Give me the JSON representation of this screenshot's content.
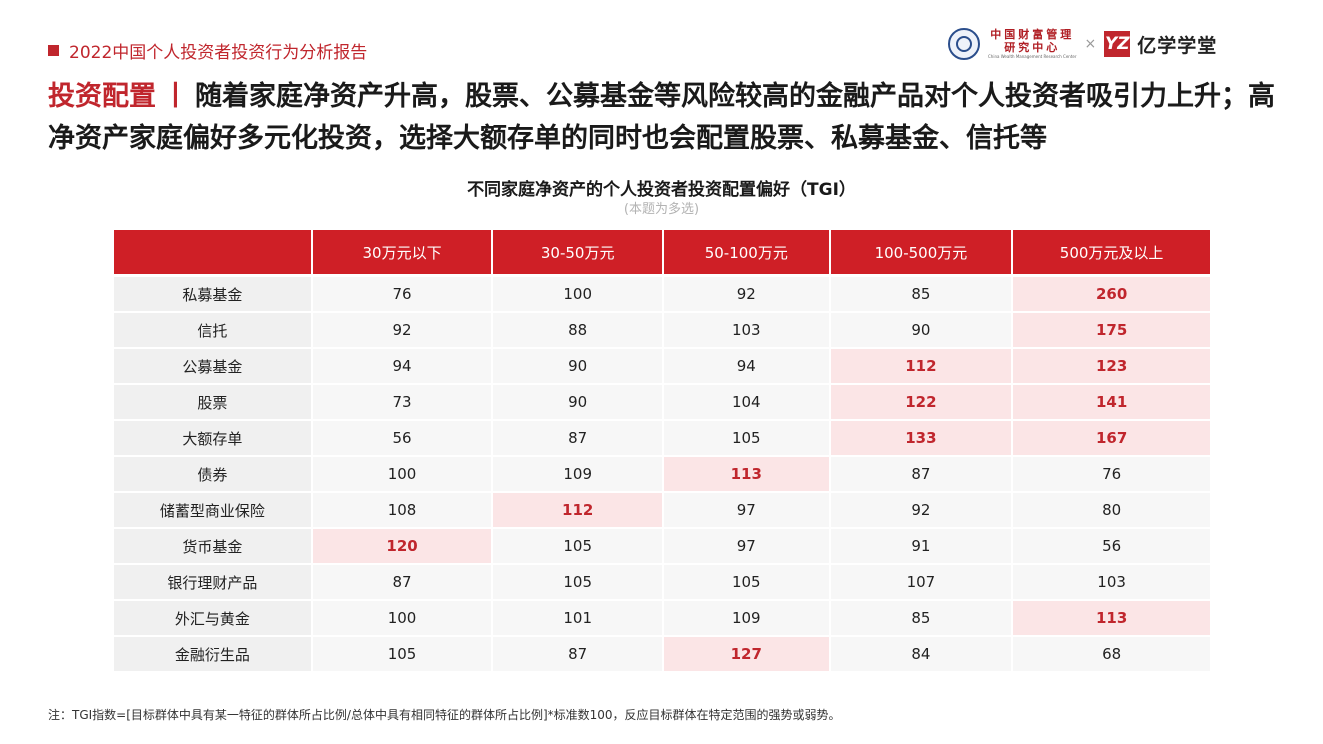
{
  "header": {
    "report_title": "2022中国个人投资者投资行为分析报告",
    "logo_org_line1": "中国财富管理",
    "logo_org_line2": "研究中心",
    "logo_org_en": "China Wealth Management Research Center",
    "logo_separator": "×",
    "logo_brand_mark": "YZ",
    "logo_brand_name": "亿学学堂"
  },
  "headline": {
    "keyword": "投资配置",
    "separator": "丨",
    "text": "随着家庭净资产升高，股票、公募基金等风险较高的金融产品对个人投资者吸引力上升；高净资产家庭偏好多元化投资，选择大额存单的同时也会配置股票、私募基金、信托等"
  },
  "table": {
    "title": "不同家庭净资产的个人投资者投资配置偏好（TGI）",
    "subtitle": "(本题为多选)",
    "columns": [
      "30万元以下",
      "30-50万元",
      "50-100万元",
      "100-500万元",
      "500万元及以上"
    ],
    "rows": [
      {
        "label": "私募基金",
        "values": [
          "76",
          "100",
          "92",
          "85",
          "260"
        ],
        "highlight": [
          false,
          false,
          false,
          false,
          true
        ]
      },
      {
        "label": "信托",
        "values": [
          "92",
          "88",
          "103",
          "90",
          "175"
        ],
        "highlight": [
          false,
          false,
          false,
          false,
          true
        ]
      },
      {
        "label": "公募基金",
        "values": [
          "94",
          "90",
          "94",
          "112",
          "123"
        ],
        "highlight": [
          false,
          false,
          false,
          true,
          true
        ]
      },
      {
        "label": "股票",
        "values": [
          "73",
          "90",
          "104",
          "122",
          "141"
        ],
        "highlight": [
          false,
          false,
          false,
          true,
          true
        ]
      },
      {
        "label": "大额存单",
        "values": [
          "56",
          "87",
          "105",
          "133",
          "167"
        ],
        "highlight": [
          false,
          false,
          false,
          true,
          true
        ]
      },
      {
        "label": "债券",
        "values": [
          "100",
          "109",
          "113",
          "87",
          "76"
        ],
        "highlight": [
          false,
          false,
          true,
          false,
          false
        ]
      },
      {
        "label": "储蓄型商业保险",
        "values": [
          "108",
          "112",
          "97",
          "92",
          "80"
        ],
        "highlight": [
          false,
          true,
          false,
          false,
          false
        ]
      },
      {
        "label": "货币基金",
        "values": [
          "120",
          "105",
          "97",
          "91",
          "56"
        ],
        "highlight": [
          true,
          false,
          false,
          false,
          false
        ]
      },
      {
        "label": "银行理财产品",
        "values": [
          "87",
          "105",
          "105",
          "107",
          "103"
        ],
        "highlight": [
          false,
          false,
          false,
          false,
          false
        ]
      },
      {
        "label": "外汇与黄金",
        "values": [
          "100",
          "101",
          "109",
          "85",
          "113"
        ],
        "highlight": [
          false,
          false,
          false,
          false,
          true
        ]
      },
      {
        "label": "金融衍生品",
        "values": [
          "105",
          "87",
          "127",
          "84",
          "68"
        ],
        "highlight": [
          false,
          false,
          true,
          false,
          false
        ]
      }
    ]
  },
  "note": "注：TGI指数=[目标群体中具有某一特征的群体所占比例/总体中具有相同特征的群体所占比例]*标准数100，反应目标群体在特定范围的强势或弱势。",
  "colors": {
    "accent": "#c0262d",
    "header_bg": "#cf1f26",
    "highlight_bg": "#fbe5e6"
  }
}
